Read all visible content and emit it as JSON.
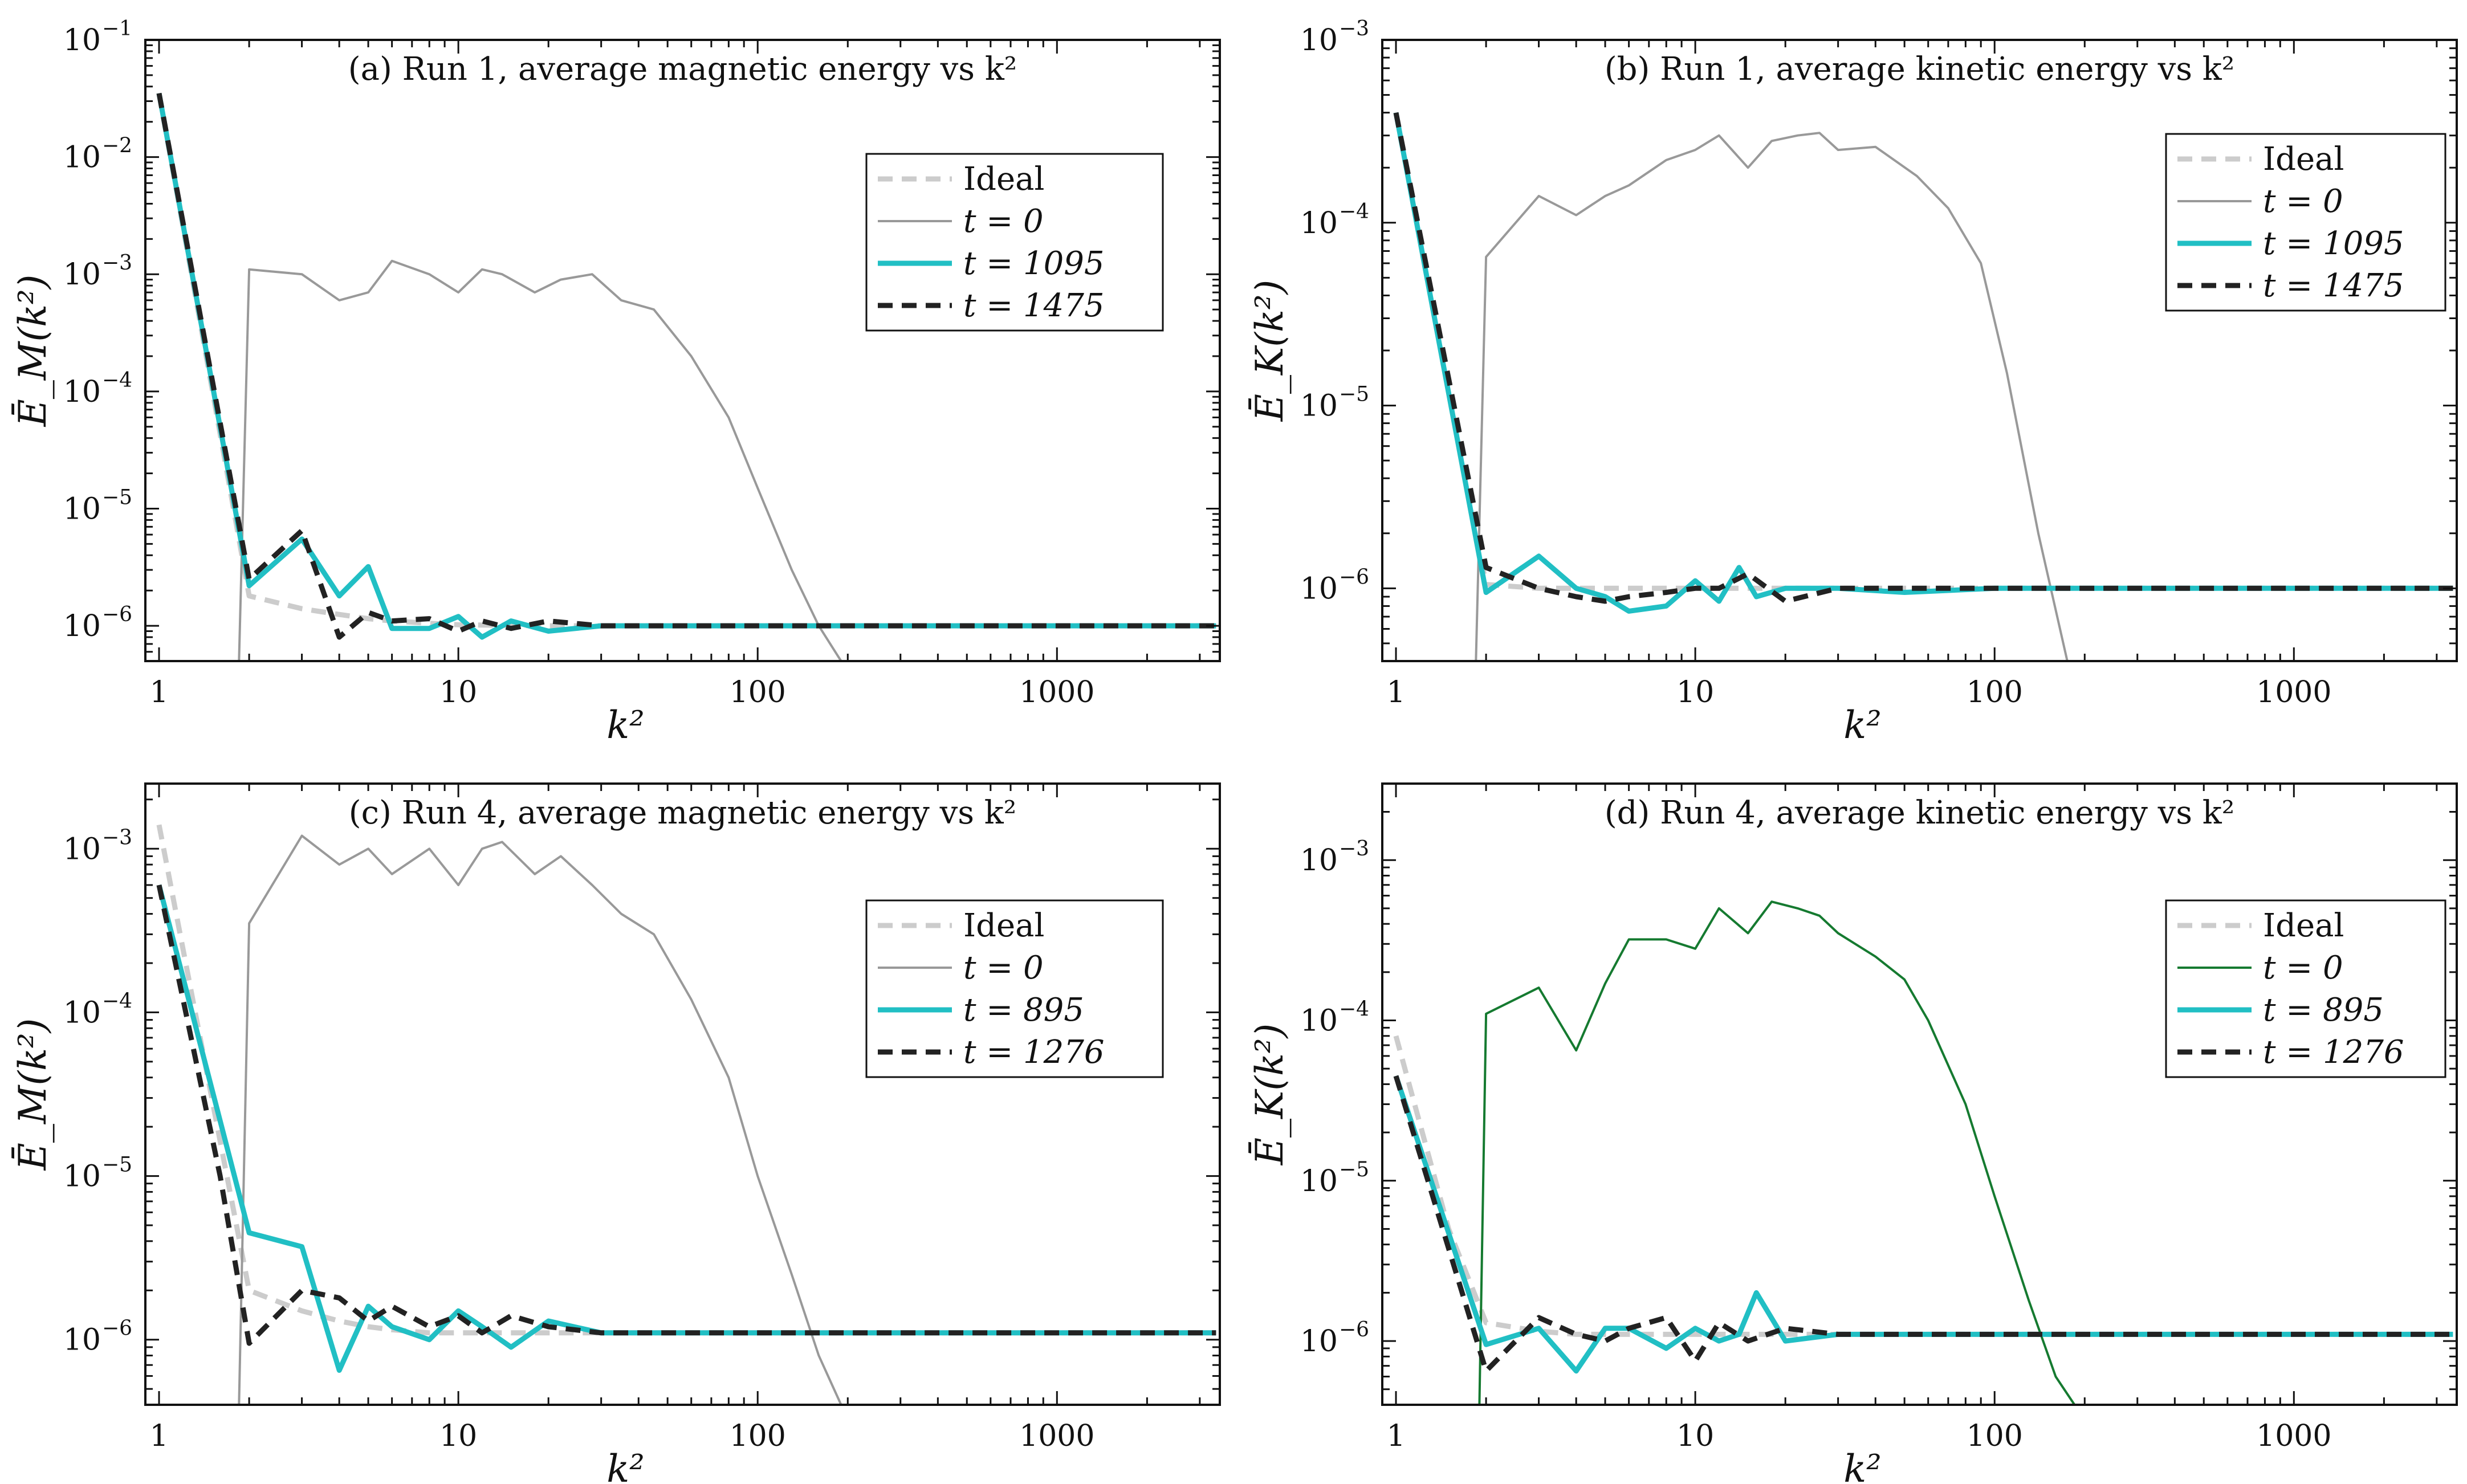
{
  "chart_data": [
    {
      "id": "a",
      "type": "line",
      "title": "(a) Run 1, average magnetic energy vs k²",
      "xlabel": "k²",
      "ylabel": "Ē_M(k²)",
      "xscale": "log",
      "yscale": "log",
      "xlim": [
        0.9,
        3500
      ],
      "ylim": [
        5e-07,
        0.1
      ],
      "xticks": [
        {
          "v": 1,
          "label": "1"
        },
        {
          "v": 10,
          "label": "10"
        },
        {
          "v": 100,
          "label": "100"
        },
        {
          "v": 1000,
          "label": "1000"
        }
      ],
      "yticks": [
        {
          "v": 1e-06,
          "label": "10",
          "exp": "−6"
        },
        {
          "v": 1e-05,
          "label": "10",
          "exp": "−5"
        },
        {
          "v": 0.0001,
          "label": "10",
          "exp": "−4"
        },
        {
          "v": 0.001,
          "label": "10",
          "exp": "−3"
        },
        {
          "v": 0.01,
          "label": "10",
          "exp": "−2"
        },
        {
          "v": 0.1,
          "label": "10",
          "exp": "−1"
        }
      ],
      "legend": {
        "position": "upper-right",
        "entries": [
          "Ideal",
          "t = 0",
          "t = 1095",
          "t = 1475"
        ]
      },
      "series": [
        {
          "name": "Ideal",
          "color": "#cccccc",
          "style": "dashed",
          "width": 9,
          "x": [
            1,
            2,
            3,
            4,
            5,
            6,
            8,
            10,
            20,
            50,
            100,
            300,
            1000,
            3400
          ],
          "y": [
            0.035,
            1.8e-06,
            1.4e-06,
            1.25e-06,
            1.15e-06,
            1.1e-06,
            1.05e-06,
            1.02e-06,
            1e-06,
            1e-06,
            1e-06,
            1e-06,
            1e-06,
            1e-06
          ]
        },
        {
          "name": "t = 0",
          "color": "#999999",
          "style": "solid",
          "width": 4,
          "x": [
            1.85,
            2,
            3,
            4,
            5,
            6,
            8,
            10,
            12,
            14,
            18,
            22,
            28,
            35,
            45,
            60,
            80,
            100,
            130,
            160,
            190
          ],
          "y": [
            5e-07,
            0.0011,
            0.001,
            0.0006,
            0.0007,
            0.0013,
            0.001,
            0.0007,
            0.0011,
            0.001,
            0.0007,
            0.0009,
            0.001,
            0.0006,
            0.0005,
            0.0002,
            6e-05,
            1.5e-05,
            3e-06,
            1e-06,
            5e-07
          ]
        },
        {
          "name": "t = 1095",
          "color": "#21bfc4",
          "style": "solid",
          "width": 9,
          "x": [
            1,
            2,
            3,
            4,
            5,
            6,
            8,
            10,
            12,
            15,
            20,
            30,
            50,
            100,
            300,
            1000,
            3400
          ],
          "y": [
            0.035,
            2.2e-06,
            5.5e-06,
            1.8e-06,
            3.2e-06,
            9.5e-07,
            9.5e-07,
            1.2e-06,
            8e-07,
            1.1e-06,
            9e-07,
            1e-06,
            1e-06,
            1e-06,
            1e-06,
            1e-06,
            1e-06
          ]
        },
        {
          "name": "t = 1475",
          "color": "#222222",
          "style": "dashed",
          "width": 9,
          "x": [
            1,
            2,
            3,
            4,
            5,
            6,
            8,
            10,
            12,
            15,
            20,
            30,
            50,
            100,
            300,
            1000,
            3400
          ],
          "y": [
            0.035,
            2.5e-06,
            6.5e-06,
            8e-07,
            1.3e-06,
            1.1e-06,
            1.15e-06,
            9e-07,
            1.1e-06,
            9.5e-07,
            1.1e-06,
            1e-06,
            1e-06,
            1e-06,
            1e-06,
            1e-06,
            1e-06
          ]
        }
      ]
    },
    {
      "id": "b",
      "type": "line",
      "title": "(b) Run 1, average kinetic energy vs k²",
      "xlabel": "k²",
      "ylabel": "Ē_K(k²)",
      "xscale": "log",
      "yscale": "log",
      "xlim": [
        0.9,
        3500
      ],
      "ylim": [
        4e-07,
        0.001
      ],
      "xticks": [
        {
          "v": 1,
          "label": "1"
        },
        {
          "v": 10,
          "label": "10"
        },
        {
          "v": 100,
          "label": "100"
        },
        {
          "v": 1000,
          "label": "1000"
        }
      ],
      "yticks": [
        {
          "v": 1e-06,
          "label": "10",
          "exp": "−6"
        },
        {
          "v": 1e-05,
          "label": "10",
          "exp": "−5"
        },
        {
          "v": 0.0001,
          "label": "10",
          "exp": "−4"
        },
        {
          "v": 0.001,
          "label": "10",
          "exp": "−3"
        }
      ],
      "legend": {
        "position": "upper-right",
        "entries": [
          "Ideal",
          "t = 0",
          "t = 1095",
          "t = 1475"
        ]
      },
      "series": [
        {
          "name": "Ideal",
          "color": "#cccccc",
          "style": "dashed",
          "width": 9,
          "x": [
            1,
            2,
            3,
            4,
            5,
            6,
            8,
            10,
            20,
            50,
            100,
            300,
            1000,
            3400
          ],
          "y": [
            0.0004,
            1.05e-06,
            1e-06,
            1e-06,
            1e-06,
            1e-06,
            1e-06,
            1e-06,
            1e-06,
            1e-06,
            1e-06,
            1e-06,
            1e-06,
            1e-06
          ]
        },
        {
          "name": "t = 0",
          "color": "#999999",
          "style": "solid",
          "width": 4,
          "x": [
            1.85,
            2,
            3,
            4,
            5,
            6,
            8,
            10,
            12,
            15,
            18,
            22,
            26,
            30,
            40,
            55,
            70,
            90,
            110,
            140,
            175
          ],
          "y": [
            4e-07,
            6.5e-05,
            0.00014,
            0.00011,
            0.00014,
            0.00016,
            0.00022,
            0.00025,
            0.0003,
            0.0002,
            0.00028,
            0.0003,
            0.00031,
            0.00025,
            0.00026,
            0.00018,
            0.00012,
            6e-05,
            1.5e-05,
            2e-06,
            4e-07
          ]
        },
        {
          "name": "t = 1095",
          "color": "#21bfc4",
          "style": "solid",
          "width": 9,
          "x": [
            1,
            2,
            3,
            4,
            5,
            6,
            8,
            10,
            12,
            14,
            16,
            20,
            30,
            50,
            100,
            300,
            1000,
            3400
          ],
          "y": [
            0.0004,
            9.5e-07,
            1.5e-06,
            1e-06,
            9e-07,
            7.5e-07,
            8e-07,
            1.1e-06,
            8.5e-07,
            1.3e-06,
            9e-07,
            1e-06,
            1e-06,
            9.5e-07,
            1e-06,
            1e-06,
            1e-06,
            1e-06
          ]
        },
        {
          "name": "t = 1475",
          "color": "#222222",
          "style": "dashed",
          "width": 9,
          "x": [
            1,
            2,
            3,
            4,
            5,
            6,
            8,
            10,
            12,
            15,
            20,
            30,
            50,
            100,
            300,
            1000,
            3400
          ],
          "y": [
            0.0004,
            1.3e-06,
            1e-06,
            9e-07,
            8.5e-07,
            9e-07,
            9.5e-07,
            1e-06,
            1e-06,
            1.2e-06,
            8.5e-07,
            1e-06,
            1e-06,
            1e-06,
            1e-06,
            1e-06,
            1e-06
          ]
        }
      ]
    },
    {
      "id": "c",
      "type": "line",
      "title": "(c) Run 4, average magnetic energy vs k²",
      "xlabel": "k²",
      "ylabel": "Ē_M(k²)",
      "xscale": "log",
      "yscale": "log",
      "xlim": [
        0.9,
        3500
      ],
      "ylim": [
        4e-07,
        0.0025
      ],
      "xticks": [
        {
          "v": 1,
          "label": "1"
        },
        {
          "v": 10,
          "label": "10"
        },
        {
          "v": 100,
          "label": "100"
        },
        {
          "v": 1000,
          "label": "1000"
        }
      ],
      "yticks": [
        {
          "v": 1e-06,
          "label": "10",
          "exp": "−6"
        },
        {
          "v": 1e-05,
          "label": "10",
          "exp": "−5"
        },
        {
          "v": 0.0001,
          "label": "10",
          "exp": "−4"
        },
        {
          "v": 0.001,
          "label": "10",
          "exp": "−3"
        }
      ],
      "legend": {
        "position": "upper-right",
        "entries": [
          "Ideal",
          "t = 0",
          "t = 895",
          "t = 1276"
        ]
      },
      "series": [
        {
          "name": "Ideal",
          "color": "#cccccc",
          "style": "dashed",
          "width": 9,
          "x": [
            1,
            1.5,
            2,
            3,
            4,
            5,
            6,
            8,
            10,
            20,
            50,
            100,
            300,
            1000,
            3400
          ],
          "y": [
            0.0014,
            3e-05,
            2e-06,
            1.5e-06,
            1.3e-06,
            1.2e-06,
            1.15e-06,
            1.1e-06,
            1.1e-06,
            1.1e-06,
            1.1e-06,
            1.1e-06,
            1.1e-06,
            1.1e-06,
            1.1e-06
          ]
        },
        {
          "name": "t = 0",
          "color": "#999999",
          "style": "solid",
          "width": 4,
          "x": [
            1.85,
            2,
            3,
            4,
            5,
            6,
            8,
            10,
            12,
            14,
            18,
            22,
            28,
            35,
            45,
            60,
            80,
            100,
            130,
            160,
            190
          ],
          "y": [
            4e-07,
            0.00035,
            0.0012,
            0.0008,
            0.001,
            0.0007,
            0.001,
            0.0006,
            0.001,
            0.0011,
            0.0007,
            0.0009,
            0.0006,
            0.0004,
            0.0003,
            0.00012,
            4e-05,
            1e-05,
            2.5e-06,
            8e-07,
            4e-07
          ]
        },
        {
          "name": "t = 895",
          "color": "#21bfc4",
          "style": "solid",
          "width": 9,
          "x": [
            1,
            2,
            3,
            4,
            5,
            6,
            8,
            10,
            12,
            15,
            20,
            30,
            50,
            100,
            300,
            1000,
            3400
          ],
          "y": [
            0.0006,
            4.5e-06,
            3.7e-06,
            6.5e-07,
            1.6e-06,
            1.2e-06,
            1e-06,
            1.5e-06,
            1.2e-06,
            9e-07,
            1.3e-06,
            1.1e-06,
            1.1e-06,
            1.1e-06,
            1.1e-06,
            1.1e-06,
            1.1e-06
          ]
        },
        {
          "name": "t = 1276",
          "color": "#222222",
          "style": "dashed",
          "width": 9,
          "x": [
            1,
            1.6,
            2,
            3,
            4,
            5,
            6,
            8,
            10,
            12,
            15,
            20,
            30,
            50,
            100,
            300,
            1000,
            3400
          ],
          "y": [
            0.0006,
            1e-05,
            9.5e-07,
            2e-06,
            1.8e-06,
            1.3e-06,
            1.6e-06,
            1.2e-06,
            1.4e-06,
            1.1e-06,
            1.4e-06,
            1.2e-06,
            1.1e-06,
            1.1e-06,
            1.1e-06,
            1.1e-06,
            1.1e-06,
            1.1e-06
          ]
        }
      ]
    },
    {
      "id": "d",
      "type": "line",
      "title": "(d) Run 4, average kinetic energy vs k²",
      "xlabel": "k²",
      "ylabel": "Ē_K(k²)",
      "xscale": "log",
      "yscale": "log",
      "xlim": [
        0.9,
        3500
      ],
      "ylim": [
        4e-07,
        0.003
      ],
      "xticks": [
        {
          "v": 1,
          "label": "1"
        },
        {
          "v": 10,
          "label": "10"
        },
        {
          "v": 100,
          "label": "100"
        },
        {
          "v": 1000,
          "label": "1000"
        }
      ],
      "yticks": [
        {
          "v": 1e-06,
          "label": "10",
          "exp": "−6"
        },
        {
          "v": 1e-05,
          "label": "10",
          "exp": "−5"
        },
        {
          "v": 0.0001,
          "label": "10",
          "exp": "−4"
        },
        {
          "v": 0.001,
          "label": "10",
          "exp": "−3"
        }
      ],
      "legend": {
        "position": "upper-right",
        "entries": [
          "Ideal",
          "t = 0",
          "t = 895",
          "t = 1276"
        ]
      },
      "series": [
        {
          "name": "Ideal",
          "color": "#cccccc",
          "style": "dashed",
          "width": 9,
          "x": [
            1,
            1.5,
            2,
            3,
            4,
            5,
            6,
            8,
            10,
            20,
            50,
            100,
            300,
            1000,
            3400
          ],
          "y": [
            8e-05,
            5e-06,
            1.3e-06,
            1.15e-06,
            1.1e-06,
            1.1e-06,
            1.1e-06,
            1.1e-06,
            1.1e-06,
            1.1e-06,
            1.1e-06,
            1.1e-06,
            1.1e-06,
            1.1e-06,
            1.1e-06
          ]
        },
        {
          "name": "t = 0",
          "color": "#157a30",
          "style": "solid",
          "width": 4,
          "x": [
            1.9,
            2,
            3,
            4,
            5,
            6,
            8,
            10,
            12,
            15,
            18,
            22,
            26,
            30,
            40,
            50,
            60,
            80,
            100,
            130,
            160,
            185
          ],
          "y": [
            4e-07,
            0.00011,
            0.00016,
            6.5e-05,
            0.00017,
            0.00032,
            0.00032,
            0.00028,
            0.0005,
            0.00035,
            0.00055,
            0.0005,
            0.00045,
            0.00035,
            0.00025,
            0.00018,
            0.0001,
            3e-05,
            8e-06,
            1.8e-06,
            6e-07,
            4e-07
          ]
        },
        {
          "name": "t = 895",
          "color": "#21bfc4",
          "style": "solid",
          "width": 9,
          "x": [
            1,
            2,
            3,
            4,
            5,
            6,
            8,
            10,
            12,
            14,
            16,
            20,
            30,
            50,
            100,
            300,
            1000,
            3400
          ],
          "y": [
            4.5e-05,
            9.5e-07,
            1.2e-06,
            6.5e-07,
            1.2e-06,
            1.2e-06,
            9e-07,
            1.2e-06,
            1e-06,
            1.1e-06,
            2e-06,
            1e-06,
            1.1e-06,
            1.1e-06,
            1.1e-06,
            1.1e-06,
            1.1e-06,
            1.1e-06
          ]
        },
        {
          "name": "t = 1276",
          "color": "#222222",
          "style": "dashed",
          "width": 9,
          "x": [
            1,
            2,
            3,
            4,
            5,
            6,
            8,
            10,
            12,
            15,
            20,
            30,
            50,
            100,
            300,
            1000,
            3400
          ],
          "y": [
            4.5e-05,
            6.5e-07,
            1.4e-06,
            1.1e-06,
            1e-06,
            1.2e-06,
            1.4e-06,
            7.5e-07,
            1.3e-06,
            1e-06,
            1.2e-06,
            1.1e-06,
            1.1e-06,
            1.1e-06,
            1.1e-06,
            1.1e-06,
            1.1e-06
          ]
        }
      ]
    }
  ]
}
